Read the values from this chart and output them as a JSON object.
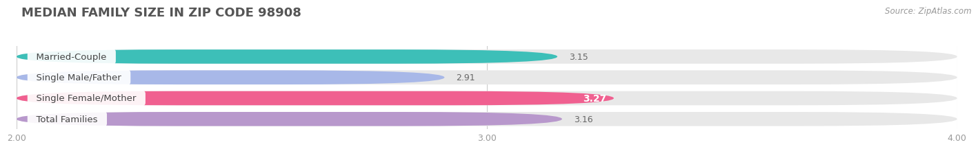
{
  "title": "MEDIAN FAMILY SIZE IN ZIP CODE 98908",
  "source": "Source: ZipAtlas.com",
  "categories": [
    "Married-Couple",
    "Single Male/Father",
    "Single Female/Mother",
    "Total Families"
  ],
  "values": [
    3.15,
    2.91,
    3.27,
    3.16
  ],
  "bar_colors": [
    "#3dbfb8",
    "#a8b8e8",
    "#f06090",
    "#b898cc"
  ],
  "bar_bg_color": "#e8e8e8",
  "xlim": [
    2.0,
    4.0
  ],
  "xticks": [
    2.0,
    3.0,
    4.0
  ],
  "xtick_labels": [
    "2.00",
    "3.00",
    "4.00"
  ],
  "background_color": "#ffffff",
  "title_fontsize": 13,
  "label_fontsize": 9.5,
  "value_fontsize": 9,
  "source_fontsize": 8.5
}
